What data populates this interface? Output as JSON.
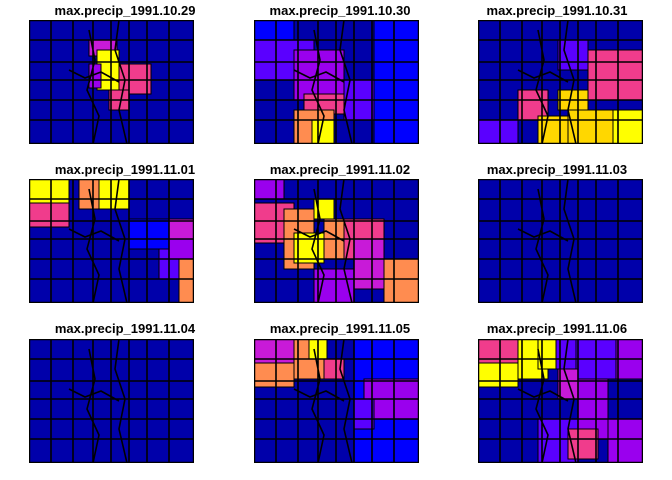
{
  "figure": {
    "panels": [
      {
        "title": "max.precip_1991.10.29",
        "date": "1991.10.29"
      },
      {
        "title": "max.precip_1991.10.30",
        "date": "1991.10.30"
      },
      {
        "title": "max.precip_1991.10.31",
        "date": "1991.10.31"
      },
      {
        "title": "max.precip_1991.11.01",
        "date": "1991.11.01"
      },
      {
        "title": "max.precip_1991.11.02",
        "date": "1991.11.02"
      },
      {
        "title": "max.precip_1991.11.03",
        "date": "1991.11.03"
      },
      {
        "title": "max.precip_1991.11.04",
        "date": "1991.11.04"
      },
      {
        "title": "max.precip_1991.11.05",
        "date": "1991.11.05"
      },
      {
        "title": "max.precip_1991.11.06",
        "date": "1991.11.06"
      }
    ]
  },
  "colors": {
    "palette": [
      "#000080",
      "#0000cc",
      "#0000ff",
      "#5a00ff",
      "#9a00ee",
      "#c81ad8",
      "#f03c8c",
      "#ff8c50",
      "#ffd700",
      "#ffff00"
    ],
    "background": "#0000aa"
  }
}
